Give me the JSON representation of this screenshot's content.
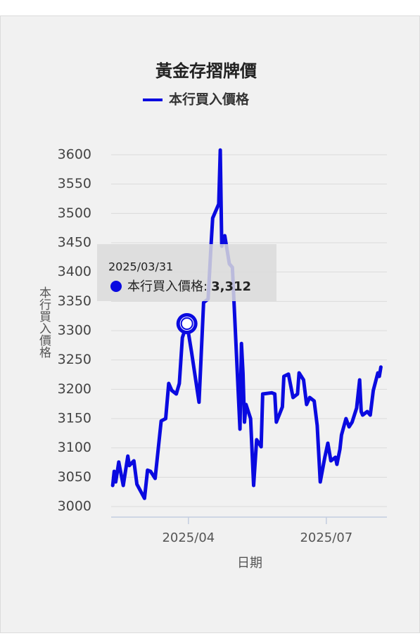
{
  "chart_data": {
    "type": "line",
    "title": "黃金存摺牌價",
    "x_label": "日期",
    "y_label": "本行買入價格",
    "x": [
      "2025/02/10",
      "2025/02/11",
      "2025/02/12",
      "2025/02/14",
      "2025/02/17",
      "2025/02/20",
      "2025/02/21",
      "2025/02/24",
      "2025/02/26",
      "2025/03/03",
      "2025/03/05",
      "2025/03/07",
      "2025/03/10",
      "2025/03/14",
      "2025/03/17",
      "2025/03/19",
      "2025/03/21",
      "2025/03/24",
      "2025/03/26",
      "2025/03/28",
      "2025/03/31",
      "2025/04/03",
      "2025/04/08",
      "2025/04/11",
      "2025/04/14",
      "2025/04/16",
      "2025/04/17",
      "2025/04/21",
      "2025/04/22",
      "2025/04/23",
      "2025/04/25",
      "2025/04/28",
      "2025/04/30",
      "2025/05/05",
      "2025/05/06",
      "2025/05/07",
      "2025/05/08",
      "2025/05/09",
      "2025/05/12",
      "2025/05/14",
      "2025/05/16",
      "2025/05/19",
      "2025/05/20",
      "2025/05/26",
      "2025/05/28",
      "2025/05/29",
      "2025/06/02",
      "2025/06/03",
      "2025/06/06",
      "2025/06/09",
      "2025/06/12",
      "2025/06/13",
      "2025/06/16",
      "2025/06/18",
      "2025/06/20",
      "2025/06/23",
      "2025/06/25",
      "2025/06/27",
      "2025/06/30",
      "2025/07/02",
      "2025/07/04",
      "2025/07/07",
      "2025/07/08",
      "2025/07/10",
      "2025/07/11",
      "2025/07/14",
      "2025/07/16",
      "2025/07/18",
      "2025/07/21",
      "2025/07/23",
      "2025/07/24",
      "2025/07/25",
      "2025/07/28",
      "2025/07/30",
      "2025/08/01",
      "2025/08/04",
      "2025/08/05",
      "2025/08/06"
    ],
    "series": [
      {
        "name": "本行買入價格",
        "color": "#0a0ae0",
        "values": [
          3036,
          3060,
          3042,
          3076,
          3036,
          3086,
          3070,
          3078,
          3038,
          3014,
          3062,
          3060,
          3048,
          3146,
          3150,
          3210,
          3198,
          3192,
          3210,
          3288,
          3312,
          3264,
          3178,
          3348,
          3354,
          3450,
          3492,
          3516,
          3608,
          3444,
          3462,
          3414,
          3408,
          3132,
          3278,
          3228,
          3144,
          3174,
          3150,
          3036,
          3114,
          3102,
          3192,
          3194,
          3192,
          3144,
          3170,
          3222,
          3226,
          3186,
          3192,
          3228,
          3216,
          3174,
          3186,
          3180,
          3138,
          3042,
          3084,
          3108,
          3078,
          3084,
          3072,
          3098,
          3122,
          3150,
          3136,
          3144,
          3168,
          3216,
          3162,
          3156,
          3162,
          3156,
          3198,
          3228,
          3222,
          3238
        ]
      }
    ],
    "xlim": [
      "2025/02/09",
      "2025/08/10"
    ],
    "xticks": [
      {
        "value": "2025/04/01",
        "label": "2025/04"
      },
      {
        "value": "2025/07/01",
        "label": "2025/07"
      }
    ],
    "ylim": [
      2982,
      3612
    ],
    "yticks": [
      3000,
      3050,
      3100,
      3150,
      3200,
      3250,
      3300,
      3350,
      3400,
      3450,
      3500,
      3550,
      3600
    ],
    "grid": true,
    "tooltip": {
      "x": "2025/03/31",
      "label": "本行買入價格:",
      "value_label": "3,312"
    }
  }
}
